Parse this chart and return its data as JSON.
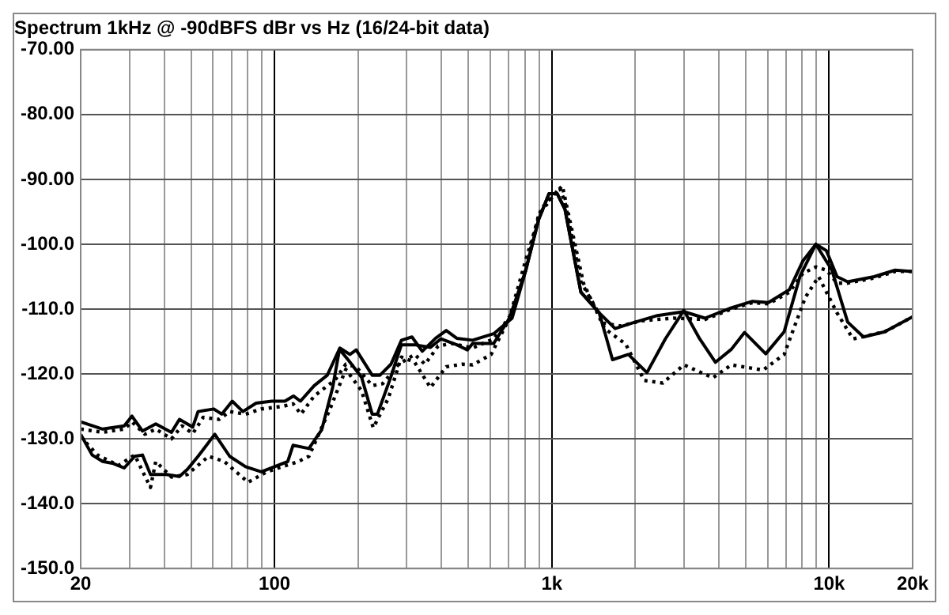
{
  "chart_data": {
    "type": "line",
    "title": "Spectrum 1kHz @ -90dBFS dBr vs Hz (16/24-bit data)",
    "log": "x",
    "grid": true,
    "legend": false,
    "marker": "none",
    "xlim": [
      20,
      20000
    ],
    "ylim": [
      -150,
      -70
    ],
    "xticks": [
      20,
      {
        "value": 30,
        "label": null
      },
      {
        "value": 40,
        "label": null
      },
      {
        "value": 50,
        "label": null
      },
      {
        "value": 60,
        "label": null
      },
      {
        "value": 70,
        "label": null
      },
      {
        "value": 80,
        "label": null
      },
      {
        "value": 90,
        "label": null
      },
      100,
      {
        "value": 200,
        "label": null
      },
      {
        "value": 300,
        "label": null
      },
      {
        "value": 400,
        "label": null
      },
      {
        "value": 500,
        "label": null
      },
      {
        "value": 600,
        "label": null
      },
      {
        "value": 700,
        "label": null
      },
      {
        "value": 800,
        "label": null
      },
      {
        "value": 900,
        "label": null
      },
      {
        "value": 1000,
        "label": "1k"
      },
      {
        "value": 2000,
        "label": null
      },
      {
        "value": 3000,
        "label": null
      },
      {
        "value": 4000,
        "label": null
      },
      {
        "value": 5000,
        "label": null
      },
      {
        "value": 6000,
        "label": null
      },
      {
        "value": 7000,
        "label": null
      },
      {
        "value": 8000,
        "label": null
      },
      {
        "value": 9000,
        "label": null
      },
      {
        "value": 10000,
        "label": "10k"
      },
      {
        "value": 20000,
        "label": "20k"
      }
    ],
    "yticks": [
      {
        "value": -150,
        "label": "-150.0"
      },
      {
        "value": -140,
        "label": "-140.0"
      },
      {
        "value": -130,
        "label": "-130.0"
      },
      {
        "value": -120,
        "label": "-120.0"
      },
      {
        "value": -110,
        "label": "-110.0"
      },
      {
        "value": -100,
        "label": "-100.0"
      },
      {
        "value": -90,
        "label": "-90.00"
      },
      {
        "value": -80,
        "label": "-80.00"
      },
      {
        "value": -70,
        "label": "-70.00"
      }
    ],
    "series": [
      {
        "color": "#000000",
        "line_style": "solid",
        "x": [
          20,
          24,
          28.7,
          30.6,
          33.4,
          37.3,
          42.5,
          45.4,
          50.7,
          53,
          60.4,
          64.5,
          70.4,
          76.9,
          85.8,
          97.8,
          109,
          117,
          124,
          139,
          155,
          172,
          187,
          197,
          225,
          240,
          263,
          287,
          313,
          341,
          381,
          416,
          454,
          518,
          617,
          719,
          803,
          896,
          977,
          1045,
          1115,
          1273,
          1483,
          1691,
          1928,
          2403,
          2993,
          3566,
          4440,
          5293,
          6040,
          7190,
          8035,
          8955,
          9780,
          10680,
          11660,
          14530,
          17300,
          20000
        ],
        "values": [
          -127.4,
          -128.5,
          -128,
          -126.5,
          -128.8,
          -127.7,
          -129,
          -127,
          -128.2,
          -125.8,
          -125.4,
          -126.2,
          -124.2,
          -125.8,
          -124.5,
          -124.2,
          -124.2,
          -123.4,
          -124.2,
          -121.8,
          -120.2,
          -116,
          -117,
          -116.3,
          -120.2,
          -120.2,
          -118.5,
          -114.8,
          -114.3,
          -116.5,
          -114.5,
          -113.3,
          -114.5,
          -114.8,
          -113.8,
          -111.4,
          -104.2,
          -96.2,
          -92.2,
          -92.2,
          -94.6,
          -107.4,
          -110.6,
          -113,
          -112.2,
          -111,
          -110.4,
          -111.4,
          -109.8,
          -108.8,
          -109,
          -107,
          -102.6,
          -100,
          -101,
          -105,
          -105.8,
          -105,
          -104,
          -104.2
        ]
      },
      {
        "color": "#000000",
        "line_style": "dotted",
        "x": [
          20,
          24,
          28.7,
          30.6,
          34.1,
          37.3,
          42.5,
          46.4,
          50.7,
          55.3,
          63.1,
          68.9,
          78.6,
          89.6,
          106.8,
          116.6,
          124.5,
          139,
          165.6,
          180.7,
          197,
          225,
          245.5,
          280.5,
          320,
          349,
          389,
          435,
          518,
          617,
          719,
          803,
          896,
          1067,
          1115,
          1273,
          1549,
          1767,
          2107,
          2742,
          3566,
          4440,
          5293,
          6040,
          7190,
          8035,
          8955,
          9780,
          10680,
          11660,
          14530,
          17300,
          20000
        ],
        "values": [
          -128.5,
          -129,
          -128.5,
          -127.4,
          -129.3,
          -128.5,
          -130,
          -128,
          -129.2,
          -126.7,
          -127,
          -125.8,
          -126.2,
          -125.4,
          -125,
          -124.6,
          -126.2,
          -123.4,
          -120.9,
          -118.5,
          -118.9,
          -121.8,
          -121.5,
          -118.5,
          -117,
          -118.5,
          -115.7,
          -115.3,
          -116,
          -114.6,
          -110.6,
          -104,
          -95.5,
          -91.3,
          -93.5,
          -105.8,
          -112.2,
          -112.6,
          -111.8,
          -111.4,
          -111.6,
          -110,
          -109,
          -109.2,
          -107.4,
          -104.5,
          -103.5,
          -104,
          -106,
          -106,
          -105.2,
          -104.2,
          -104.2
        ]
      },
      {
        "color": "#000000",
        "line_style": "solid",
        "x": [
          20,
          22,
          24,
          26.2,
          28.7,
          31.3,
          33.4,
          35.7,
          40.7,
          45.4,
          48.5,
          53,
          60.9,
          68.9,
          78.6,
          89.6,
          100,
          111.6,
          116.6,
          133,
          148,
          162,
          171.5,
          184.8,
          206,
          225,
          235,
          262.5,
          286.7,
          320,
          365,
          398,
          454,
          496,
          518,
          617,
          703,
          803,
          896,
          977,
          1045,
          1115,
          1273,
          1483,
          1655,
          1888,
          2203,
          2566,
          2993,
          3414,
          3891,
          4440,
          4955,
          5907,
          6880,
          7855,
          8955,
          10230,
          11660,
          13300,
          15850,
          20000
        ],
        "values": [
          -129.3,
          -132.5,
          -133.5,
          -133.8,
          -134.5,
          -132.7,
          -132.5,
          -135.5,
          -135.5,
          -135.8,
          -134.7,
          -132.7,
          -129.3,
          -132.7,
          -134.3,
          -135.1,
          -134.3,
          -133.5,
          -131,
          -131.5,
          -128.6,
          -122.1,
          -116.2,
          -117.9,
          -120.5,
          -126.2,
          -126.2,
          -120.5,
          -115.5,
          -115.5,
          -115.9,
          -114.6,
          -115.5,
          -116.3,
          -115.3,
          -115.3,
          -111.4,
          -104.2,
          -96.2,
          -92.2,
          -92.2,
          -94.6,
          -107.4,
          -110.6,
          -117.8,
          -117,
          -119.8,
          -114.6,
          -110.2,
          -114.6,
          -118.2,
          -116.2,
          -113.6,
          -116.9,
          -113.5,
          -104.9,
          -100,
          -104,
          -112,
          -114.3,
          -113.5,
          -111.2
        ]
      },
      {
        "color": "#000000",
        "line_style": "dotted",
        "x": [
          20,
          23,
          27.4,
          31.3,
          35.7,
          37.3,
          42.5,
          48.5,
          57.8,
          65.9,
          80.3,
          93.6,
          106.8,
          121.9,
          133,
          158.5,
          180.7,
          206,
          227,
          257,
          286.7,
          320,
          365,
          416,
          475,
          518,
          604,
          703,
          803,
          916,
          1091,
          1300,
          1549,
          1847,
          2153,
          2512,
          2993,
          3808,
          4440,
          5781,
          6880,
          8204,
          9160,
          10680,
          12190,
          15850,
          20000
        ],
        "values": [
          -129.7,
          -132.5,
          -134.1,
          -132.5,
          -137.5,
          -133.5,
          -135.9,
          -135.5,
          -132.7,
          -133.5,
          -136.7,
          -135.1,
          -134.3,
          -133.5,
          -132.7,
          -125.4,
          -119.3,
          -122.6,
          -128.3,
          -123.8,
          -117.4,
          -118.2,
          -122.1,
          -118.9,
          -118.5,
          -118.6,
          -117,
          -111.4,
          -102.6,
          -94.5,
          -91,
          -106,
          -113,
          -115.4,
          -121,
          -121.4,
          -118.6,
          -120.6,
          -118.6,
          -119.4,
          -117,
          -108.2,
          -105,
          -110.6,
          -114.6,
          -113.5,
          -111.2
        ]
      }
    ]
  }
}
